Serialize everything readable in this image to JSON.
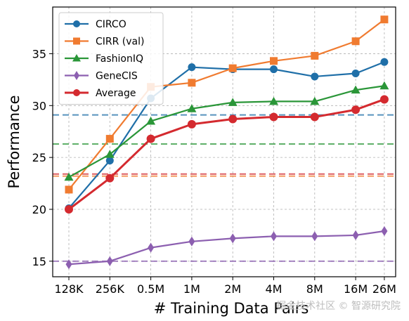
{
  "chart_data": {
    "type": "line",
    "title": "",
    "xlabel": "# Training Data Pairs",
    "ylabel": "Performance",
    "categories": [
      "128K",
      "256K",
      "0.5M",
      "1M",
      "2M",
      "4M",
      "8M",
      "16M",
      "26M"
    ],
    "x_positions": [
      0,
      1,
      2,
      3,
      4,
      5,
      6,
      7,
      7.7
    ],
    "ylim": [
      13.5,
      39.5
    ],
    "yticks": [
      15,
      20,
      25,
      30,
      35
    ],
    "grid": true,
    "legend_position": "top-left",
    "series": [
      {
        "name": "CIRCO",
        "color": "#1f6fa8",
        "marker": "circle",
        "values": [
          20.1,
          24.7,
          30.7,
          33.7,
          33.5,
          33.5,
          32.8,
          33.1,
          34.2
        ],
        "baseline": 29.1
      },
      {
        "name": "CIRR (val)",
        "color": "#f07b30",
        "marker": "square",
        "values": [
          21.9,
          26.8,
          31.8,
          32.2,
          33.6,
          34.3,
          34.8,
          36.2,
          38.3
        ],
        "baseline": 23.2
      },
      {
        "name": "FashionIQ",
        "color": "#2a9638",
        "marker": "triangle",
        "values": [
          23.1,
          25.3,
          28.5,
          29.7,
          30.3,
          30.4,
          30.4,
          31.5,
          31.9
        ],
        "baseline": 26.3
      },
      {
        "name": "GeneCIS",
        "color": "#8c5fb0",
        "marker": "diamond",
        "values": [
          14.7,
          15.0,
          16.3,
          16.9,
          17.2,
          17.4,
          17.4,
          17.5,
          17.9
        ],
        "baseline": 15.0
      },
      {
        "name": "Average",
        "color": "#d42a2f",
        "marker": "circle",
        "values": [
          20.0,
          23.0,
          26.8,
          28.2,
          28.7,
          28.9,
          28.9,
          29.6,
          30.6
        ],
        "baseline": 23.4
      }
    ]
  },
  "watermark": "掘金技术社区 © 智源研究院"
}
